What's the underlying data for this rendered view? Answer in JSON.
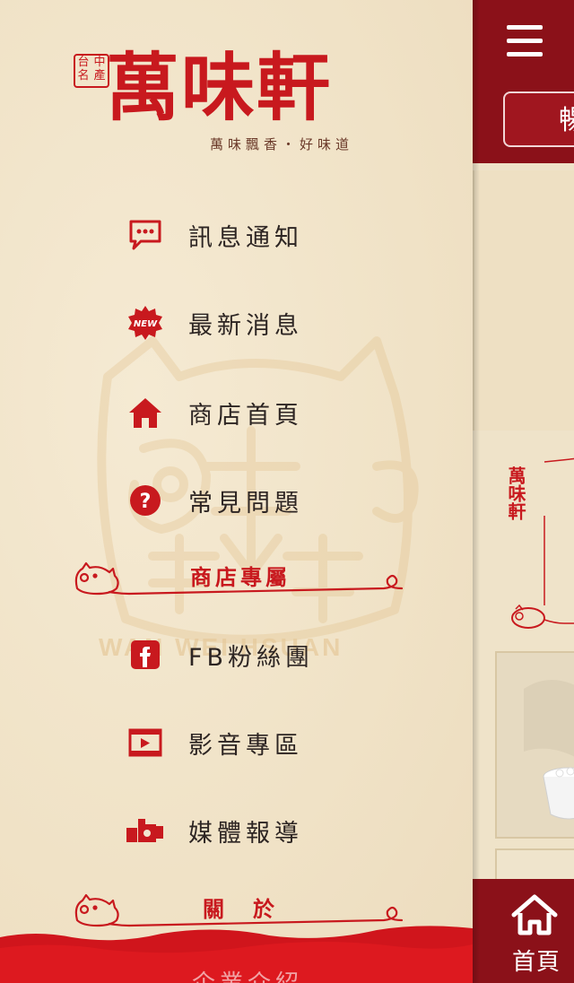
{
  "brand": {
    "seal_chars": [
      "中",
      "台",
      "產",
      "名"
    ],
    "name": "萬味軒",
    "slogan": "萬味飄香‧好味道",
    "watermark": "WAN WEI HSUAN"
  },
  "menu": {
    "items_top": [
      {
        "label": "訊息通知",
        "icon": "chat-bubble-icon"
      },
      {
        "label": "最新消息",
        "icon": "new-badge-icon"
      },
      {
        "label": "商店首頁",
        "icon": "home-icon"
      },
      {
        "label": "常見問題",
        "icon": "question-icon"
      }
    ],
    "section_store": {
      "title": "商店專屬"
    },
    "items_store": [
      {
        "label": "FB粉絲團",
        "icon": "facebook-icon"
      },
      {
        "label": "影音專區",
        "icon": "video-icon"
      },
      {
        "label": "媒體報導",
        "icon": "camera-icon"
      }
    ],
    "section_about": {
      "title": "關　於"
    },
    "items_about": [
      {
        "label": "企業介紹",
        "icon": "building-icon"
      }
    ]
  },
  "main": {
    "top_button_label": "暢",
    "mini_logo": "萬味軒",
    "tab_home_label": "首頁"
  },
  "colors": {
    "brand_red": "#c8191e",
    "dark_red": "#8b1119",
    "paper": "#f1e6cf"
  }
}
